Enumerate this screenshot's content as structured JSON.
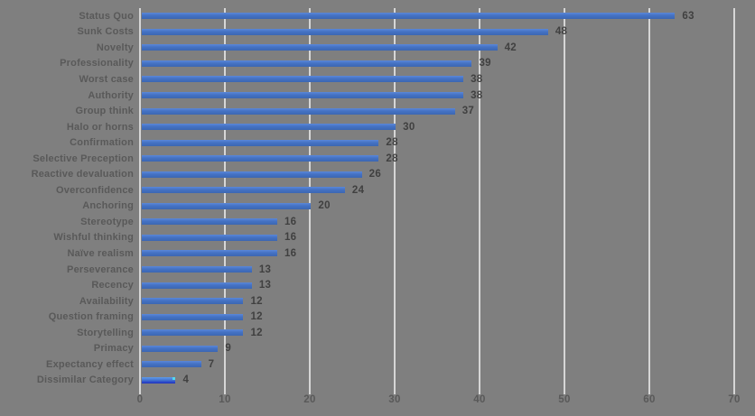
{
  "chart_data": {
    "type": "bar",
    "orientation": "horizontal",
    "title": "",
    "xlabel": "",
    "ylabel": "",
    "categories": [
      "Status Quo",
      "Sunk Costs",
      "Novelty",
      "Professionality",
      "Worst case",
      "Authority",
      "Group think",
      "Halo or horns",
      "Confirmation",
      "Selective Preception",
      "Reactive devaluation",
      "Overconfidence",
      "Anchoring",
      "Stereotype",
      "Wishful thinking",
      "Naïve realism",
      "Perseverance",
      "Recency",
      "Availability",
      "Question framing",
      "Storytelling",
      "Primacy",
      "Expectancy effect",
      "Dissimilar Category"
    ],
    "values": [
      63,
      48,
      42,
      39,
      38,
      38,
      37,
      30,
      28,
      28,
      26,
      24,
      20,
      16,
      16,
      16,
      13,
      13,
      12,
      12,
      12,
      9,
      7,
      4
    ],
    "xlim": [
      0,
      70
    ],
    "x_ticks": [
      "0",
      "10",
      "20",
      "30",
      "40",
      "50",
      "60",
      "70"
    ],
    "grid": "vertical",
    "legend": "none",
    "data_labels": "outside-end",
    "colors": {
      "background": "#7f7f7f",
      "bar": "#4472c4",
      "last_bar_accent": "#2335b8",
      "last_bar_tip": "#53d8f2",
      "gridline": "#d6d6d6",
      "category_label": "#595959",
      "value_label": "#404040",
      "axis_label": "#595959"
    }
  }
}
